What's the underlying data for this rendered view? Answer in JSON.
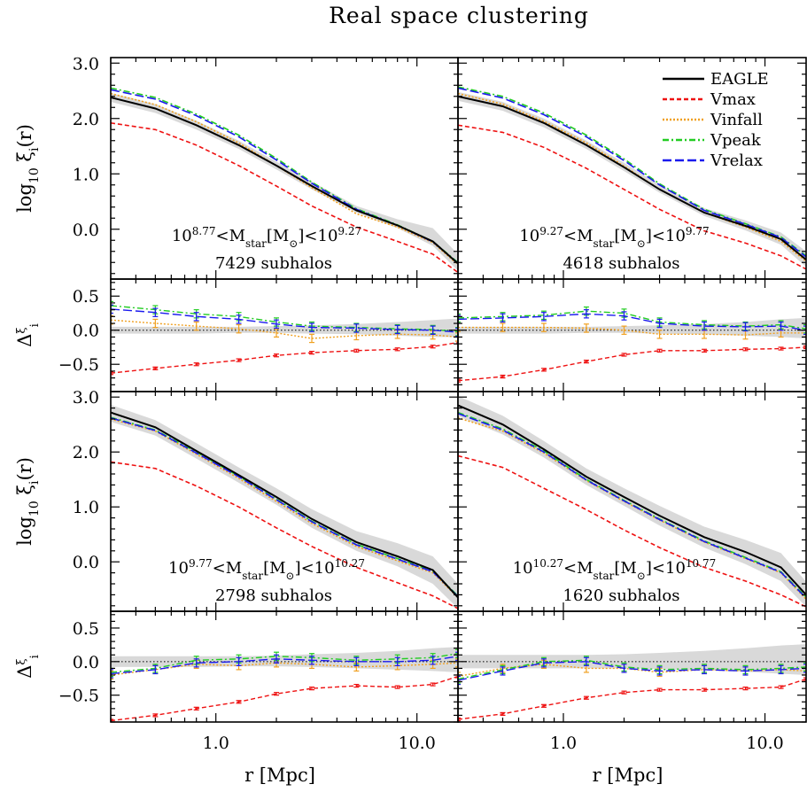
{
  "title": "Real space clustering",
  "labels": {
    "ylabel_main": [
      "log",
      "10",
      " ξ",
      "i",
      "(r)"
    ],
    "ylabel_ratio": [
      "Δ",
      "ξ",
      "i"
    ],
    "xlabel": "r [Mpc]"
  },
  "ticks": {
    "x": [
      {
        "v": 1,
        "label": "1.0"
      },
      {
        "v": 10,
        "label": "10.0"
      }
    ],
    "y_main": [
      {
        "v": 3,
        "label": "3.0"
      },
      {
        "v": 2,
        "label": "2.0"
      },
      {
        "v": 1,
        "label": "1.0"
      },
      {
        "v": 0,
        "label": "0.0"
      }
    ],
    "y_ratio": [
      {
        "v": 0.5,
        "label": "0.5"
      },
      {
        "v": 0,
        "label": "0.0"
      },
      {
        "v": -0.5,
        "label": "−0.5"
      }
    ]
  },
  "legend": [
    {
      "label": "EAGLE",
      "color": "#000000",
      "dash": "none"
    },
    {
      "label": "Vmax",
      "color": "#ee1111",
      "dash": "5,3"
    },
    {
      "label": "Vinfall",
      "color": "#f0a020",
      "dash": "2,2"
    },
    {
      "label": "Vpeak",
      "color": "#22cc22",
      "dash": "7,3,2,3"
    },
    {
      "label": "Vrelax",
      "color": "#1a1aee",
      "dash": "10,4"
    }
  ],
  "chart_data": {
    "type": "line",
    "title": "Real space clustering",
    "xlabel": "r [Mpc]",
    "xscale": "log",
    "xlim": [
      0.3,
      16
    ],
    "ylim_main": [
      -0.9,
      3.1
    ],
    "ylim_ratio": [
      -0.9,
      0.75
    ],
    "legend_position": "top-right",
    "panels": [
      {
        "mass_label": {
          "base": "10",
          "exp_lo": "8.77",
          "mid": "<M",
          "sub": "star",
          "unit_open": "[M",
          "sun": "⊙",
          "unit_close": "]<10",
          "exp_hi": "9.27"
        },
        "count_label": "7429 subhalos",
        "r": [
          0.3,
          0.5,
          0.8,
          1.3,
          2.0,
          3.0,
          5.0,
          8.0,
          12.0,
          16.0
        ],
        "EAGLE": [
          2.38,
          2.18,
          1.88,
          1.52,
          1.15,
          0.78,
          0.34,
          0.07,
          -0.22,
          -0.62
        ],
        "Vmax": [
          1.92,
          1.8,
          1.52,
          1.15,
          0.78,
          0.42,
          0.04,
          -0.22,
          -0.45,
          -0.78
        ],
        "Vinfall": [
          2.45,
          2.25,
          1.94,
          1.56,
          1.15,
          0.75,
          0.28,
          0.04,
          -0.24,
          -0.64
        ],
        "Vpeak": [
          2.55,
          2.38,
          2.08,
          1.7,
          1.28,
          0.85,
          0.37,
          0.08,
          -0.22,
          -0.6
        ],
        "Vrelax": [
          2.52,
          2.35,
          2.05,
          1.67,
          1.25,
          0.83,
          0.36,
          0.07,
          -0.23,
          -0.61
        ],
        "EAGLE_band_lo": [
          2.3,
          2.1,
          1.8,
          1.45,
          1.08,
          0.72,
          0.3,
          0.02,
          -0.3,
          -0.75
        ],
        "EAGLE_band_hi": [
          2.46,
          2.26,
          1.96,
          1.6,
          1.22,
          0.86,
          0.42,
          0.18,
          0.02,
          -0.45
        ],
        "ratio": {
          "Vmax": [
            -0.63,
            -0.56,
            -0.5,
            -0.44,
            -0.37,
            -0.33,
            -0.3,
            -0.28,
            -0.24,
            -0.18
          ],
          "Vinfall": [
            0.15,
            0.1,
            0.06,
            0.02,
            -0.04,
            -0.12,
            -0.08,
            -0.06,
            -0.07,
            -0.1
          ],
          "Vpeak": [
            0.36,
            0.3,
            0.24,
            0.2,
            0.12,
            0.06,
            0.04,
            0.02,
            0.01,
            -0.02
          ],
          "Vrelax": [
            0.31,
            0.26,
            0.2,
            0.16,
            0.09,
            0.04,
            0.03,
            0.01,
            0.0,
            -0.03
          ],
          "band_lo": [
            -0.05,
            -0.05,
            -0.05,
            -0.04,
            -0.04,
            -0.05,
            -0.06,
            -0.08,
            -0.1,
            -0.1
          ],
          "band_hi": [
            0.05,
            0.05,
            0.05,
            0.05,
            0.06,
            0.07,
            0.09,
            0.12,
            0.15,
            0.17
          ]
        }
      },
      {
        "mass_label": {
          "base": "10",
          "exp_lo": "9.27",
          "mid": "<M",
          "sub": "star",
          "unit_open": "[M",
          "sun": "⊙",
          "unit_close": "]<10",
          "exp_hi": "9.77"
        },
        "count_label": "4618 subhalos",
        "r": [
          0.3,
          0.5,
          0.8,
          1.3,
          2.0,
          3.0,
          5.0,
          8.0,
          12.0,
          16.0
        ],
        "EAGLE": [
          2.4,
          2.22,
          1.92,
          1.52,
          1.12,
          0.72,
          0.3,
          0.06,
          -0.18,
          -0.55
        ],
        "Vmax": [
          1.88,
          1.75,
          1.48,
          1.1,
          0.72,
          0.36,
          -0.03,
          -0.25,
          -0.48,
          -0.72
        ],
        "Vinfall": [
          2.45,
          2.26,
          1.95,
          1.56,
          1.14,
          0.72,
          0.3,
          0.04,
          -0.22,
          -0.58
        ],
        "Vpeak": [
          2.57,
          2.4,
          2.1,
          1.7,
          1.27,
          0.82,
          0.36,
          0.1,
          -0.14,
          -0.48
        ],
        "Vrelax": [
          2.55,
          2.37,
          2.07,
          1.67,
          1.24,
          0.8,
          0.34,
          0.09,
          -0.15,
          -0.5
        ],
        "EAGLE_band_lo": [
          2.32,
          2.14,
          1.84,
          1.45,
          1.05,
          0.66,
          0.24,
          -0.02,
          -0.28,
          -0.68
        ],
        "EAGLE_band_hi": [
          2.48,
          2.3,
          2.0,
          1.6,
          1.2,
          0.8,
          0.38,
          0.16,
          -0.06,
          -0.4
        ],
        "ratio": {
          "Vmax": [
            -0.74,
            -0.68,
            -0.58,
            -0.46,
            -0.36,
            -0.3,
            -0.3,
            -0.28,
            -0.27,
            -0.25
          ],
          "Vinfall": [
            0.04,
            0.04,
            0.04,
            0.03,
            0.0,
            -0.06,
            -0.06,
            -0.07,
            -0.04,
            -0.04
          ],
          "Vpeak": [
            0.18,
            0.2,
            0.22,
            0.28,
            0.25,
            0.12,
            0.08,
            0.06,
            0.08,
            0.02
          ],
          "Vrelax": [
            0.16,
            0.18,
            0.2,
            0.24,
            0.21,
            0.1,
            0.06,
            0.05,
            0.06,
            0.0
          ],
          "band_lo": [
            -0.05,
            -0.05,
            -0.05,
            -0.04,
            -0.04,
            -0.05,
            -0.06,
            -0.08,
            -0.1,
            -0.12
          ],
          "band_hi": [
            0.05,
            0.05,
            0.05,
            0.05,
            0.06,
            0.07,
            0.09,
            0.12,
            0.16,
            0.18
          ]
        }
      },
      {
        "mass_label": {
          "base": "10",
          "exp_lo": "9.77",
          "mid": "<M",
          "sub": "star",
          "unit_open": "[M",
          "sun": "⊙",
          "unit_close": "]<10",
          "exp_hi": "10.27"
        },
        "count_label": "2798 subhalos",
        "r": [
          0.3,
          0.5,
          0.8,
          1.3,
          2.0,
          3.0,
          5.0,
          8.0,
          12.0,
          16.0
        ],
        "EAGLE": [
          2.72,
          2.45,
          2.02,
          1.58,
          1.18,
          0.78,
          0.36,
          0.1,
          -0.15,
          -0.65
        ],
        "Vmax": [
          1.82,
          1.7,
          1.38,
          1.0,
          0.62,
          0.28,
          -0.1,
          -0.38,
          -0.62,
          -0.85
        ],
        "Vinfall": [
          2.6,
          2.38,
          1.96,
          1.52,
          1.1,
          0.7,
          0.28,
          0.02,
          -0.2,
          -0.65
        ],
        "Vpeak": [
          2.63,
          2.4,
          2.0,
          1.56,
          1.14,
          0.74,
          0.32,
          0.06,
          -0.17,
          -0.62
        ],
        "Vrelax": [
          2.62,
          2.39,
          1.98,
          1.55,
          1.13,
          0.73,
          0.31,
          0.05,
          -0.18,
          -0.63
        ],
        "EAGLE_band_lo": [
          2.55,
          2.3,
          1.88,
          1.44,
          1.04,
          0.62,
          0.2,
          -0.08,
          -0.4,
          -0.85
        ],
        "EAGLE_band_hi": [
          2.86,
          2.58,
          2.16,
          1.72,
          1.34,
          0.96,
          0.56,
          0.34,
          0.1,
          -0.4
        ],
        "ratio": {
          "Vmax": [
            -0.88,
            -0.8,
            -0.7,
            -0.6,
            -0.48,
            -0.4,
            -0.36,
            -0.38,
            -0.34,
            -0.22
          ],
          "Vinfall": [
            -0.2,
            -0.12,
            -0.04,
            -0.06,
            -0.02,
            -0.04,
            -0.08,
            -0.06,
            -0.04,
            -0.02
          ],
          "Vpeak": [
            -0.16,
            -0.1,
            0.02,
            0.04,
            0.08,
            0.06,
            0.02,
            0.04,
            0.06,
            0.12
          ],
          "Vrelax": [
            -0.18,
            -0.12,
            -0.02,
            0.0,
            0.04,
            0.02,
            0.0,
            0.0,
            0.02,
            0.08
          ],
          "band_lo": [
            -0.08,
            -0.08,
            -0.08,
            -0.07,
            -0.07,
            -0.08,
            -0.1,
            -0.12,
            -0.14,
            -0.16
          ],
          "band_hi": [
            0.08,
            0.08,
            0.08,
            0.08,
            0.09,
            0.11,
            0.13,
            0.16,
            0.2,
            0.22
          ]
        }
      },
      {
        "mass_label": {
          "base": "10",
          "exp_lo": "10.27",
          "mid": "<M",
          "sub": "star",
          "unit_open": "[M",
          "sun": "⊙",
          "unit_close": "]<10",
          "exp_hi": "10.77"
        },
        "count_label": "1620 subhalos",
        "r": [
          0.3,
          0.5,
          0.8,
          1.3,
          2.0,
          3.0,
          5.0,
          8.0,
          12.0,
          16.0
        ],
        "EAGLE": [
          2.85,
          2.5,
          2.05,
          1.55,
          1.18,
          0.84,
          0.45,
          0.18,
          -0.1,
          -0.6
        ],
        "Vmax": [
          1.93,
          1.72,
          1.34,
          0.95,
          0.58,
          0.26,
          -0.1,
          -0.35,
          -0.6,
          -0.82
        ],
        "Vinfall": [
          2.62,
          2.38,
          1.98,
          1.48,
          1.1,
          0.76,
          0.36,
          0.06,
          -0.2,
          -0.68
        ],
        "Vpeak": [
          2.72,
          2.42,
          2.02,
          1.5,
          1.12,
          0.78,
          0.38,
          0.08,
          -0.18,
          -0.64
        ],
        "Vrelax": [
          2.7,
          2.4,
          2.0,
          1.49,
          1.11,
          0.77,
          0.37,
          0.07,
          -0.19,
          -0.66
        ],
        "EAGLE_band_lo": [
          2.65,
          2.32,
          1.9,
          1.4,
          1.02,
          0.66,
          0.26,
          -0.04,
          -0.35,
          -0.82
        ],
        "EAGLE_band_hi": [
          3.02,
          2.66,
          2.2,
          1.7,
          1.34,
          1.02,
          0.64,
          0.4,
          0.16,
          -0.36
        ],
        "ratio": {
          "Vmax": [
            -0.86,
            -0.78,
            -0.66,
            -0.54,
            -0.46,
            -0.42,
            -0.42,
            -0.4,
            -0.38,
            -0.26
          ],
          "Vinfall": [
            -0.22,
            -0.1,
            -0.04,
            -0.1,
            -0.1,
            -0.16,
            -0.12,
            -0.14,
            -0.12,
            -0.14
          ],
          "Vpeak": [
            -0.26,
            -0.12,
            0.0,
            0.02,
            -0.08,
            -0.12,
            -0.1,
            -0.12,
            -0.1,
            -0.08
          ],
          "Vrelax": [
            -0.28,
            -0.14,
            -0.02,
            0.0,
            -0.1,
            -0.14,
            -0.12,
            -0.14,
            -0.12,
            -0.1
          ],
          "band_lo": [
            -0.1,
            -0.1,
            -0.1,
            -0.1,
            -0.1,
            -0.11,
            -0.13,
            -0.15,
            -0.18,
            -0.2
          ],
          "band_hi": [
            0.1,
            0.1,
            0.1,
            0.1,
            0.11,
            0.13,
            0.16,
            0.2,
            0.24,
            0.26
          ]
        }
      }
    ]
  }
}
